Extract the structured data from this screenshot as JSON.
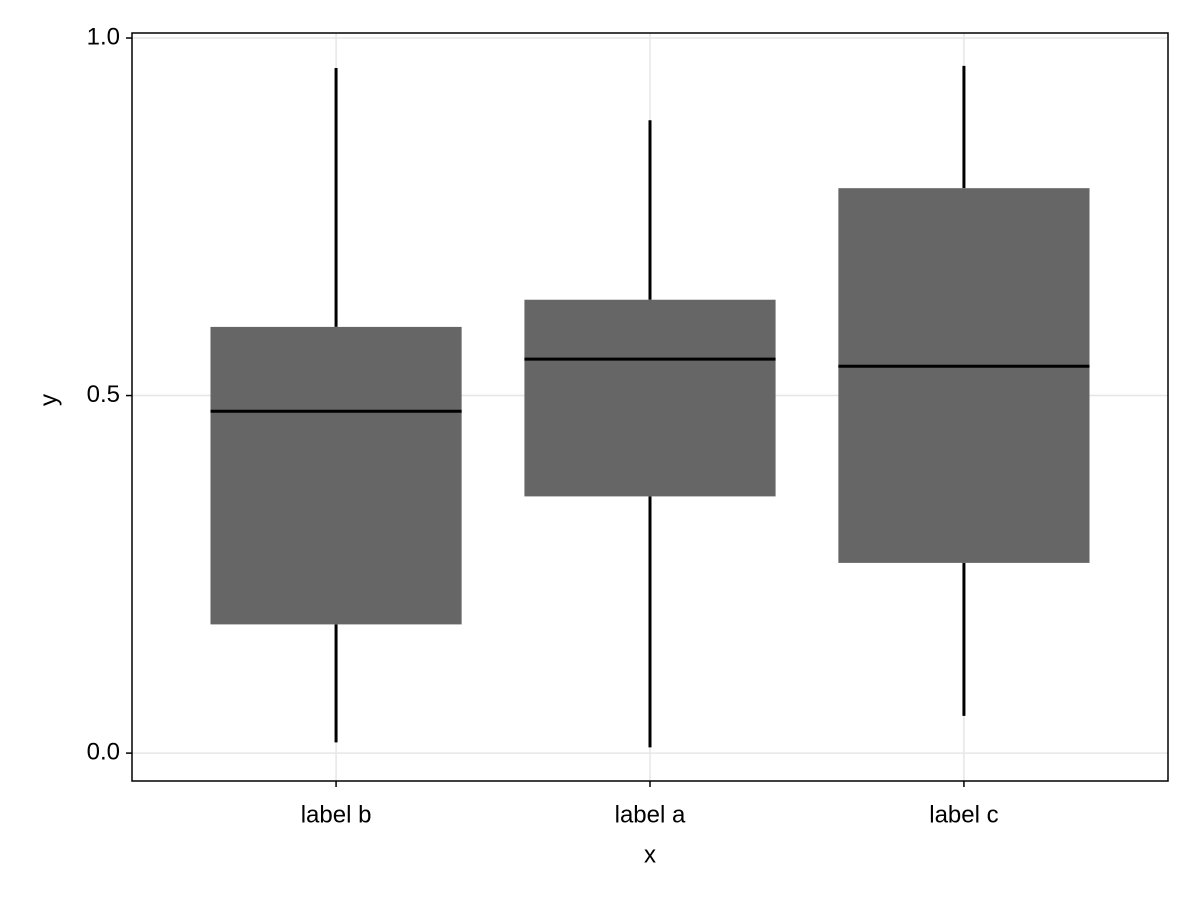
{
  "chart_data": {
    "type": "box",
    "x_label": "x",
    "y_label": "y",
    "categories": [
      "label b",
      "label a",
      "label c"
    ],
    "min": [
      0.015,
      0.008,
      0.052
    ],
    "q1": [
      0.18,
      0.359,
      0.266
    ],
    "median": [
      0.478,
      0.551,
      0.541
    ],
    "q3": [
      0.596,
      0.634,
      0.79
    ],
    "max": [
      0.958,
      0.885,
      0.961
    ],
    "color": "#666666",
    "ylim": [
      -0.039,
      1.007
    ],
    "yticks": [
      {
        "value": 0,
        "label": "0.0"
      },
      {
        "value": 0.5,
        "label": "0.5"
      },
      {
        "value": 1,
        "label": "1.0"
      }
    ],
    "grid": true
  }
}
